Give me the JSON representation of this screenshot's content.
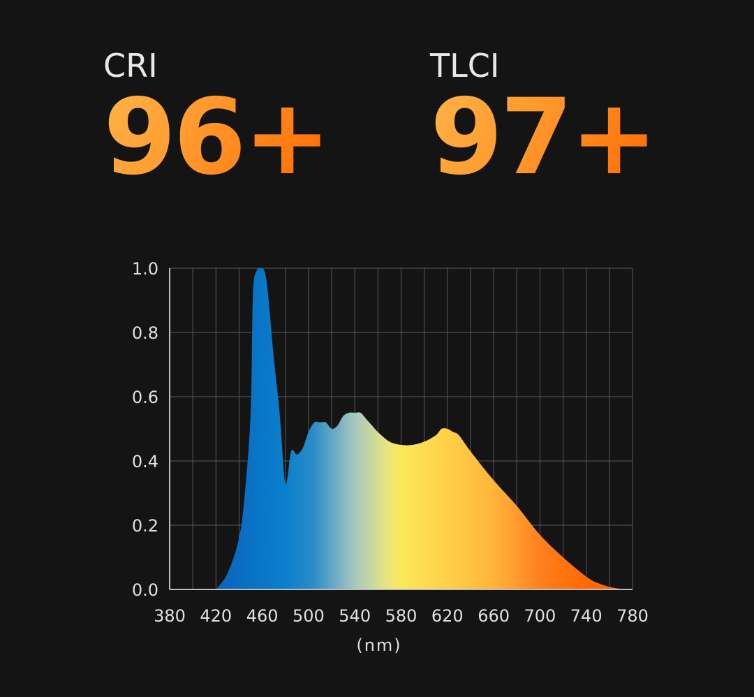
{
  "metrics": [
    {
      "label": "CRI",
      "value": "96+"
    },
    {
      "label": "TLCI",
      "value": "97+"
    }
  ],
  "colors": {
    "background": "#141414",
    "accent_light": "#ffb347",
    "accent_dark": "#ff6a00",
    "grid": "#5a5a5a",
    "axis": "#bdbdbd",
    "label": "#e0e0e0"
  },
  "chart_data": {
    "type": "area",
    "title": "",
    "xlabel": "(nm)",
    "ylabel": "",
    "xlim": [
      380,
      780
    ],
    "ylim": [
      0,
      1
    ],
    "x_ticks": [
      380,
      420,
      460,
      500,
      540,
      580,
      620,
      660,
      700,
      740,
      780
    ],
    "y_ticks": [
      0.0,
      0.2,
      0.4,
      0.6,
      0.8,
      1.0
    ],
    "y_tick_labels": [
      "0.0",
      "0.2",
      "0.4",
      "0.6",
      "0.8",
      "1.0"
    ],
    "grid": true,
    "fill": "visible-spectrum gradient",
    "series": [
      {
        "x": [
          420,
          430,
          440,
          445,
          450,
          452,
          455,
          458,
          462,
          465,
          470,
          475,
          480,
          485,
          490,
          495,
          500,
          505,
          510,
          515,
          520,
          525,
          530,
          535,
          540,
          545,
          550,
          555,
          560,
          570,
          580,
          590,
          600,
          610,
          615,
          620,
          625,
          630,
          640,
          660,
          680,
          700,
          720,
          740,
          750,
          760,
          770,
          780
        ],
        "y": [
          0.0,
          0.05,
          0.16,
          0.3,
          0.55,
          0.92,
          0.99,
          1.0,
          0.99,
          0.92,
          0.72,
          0.55,
          0.33,
          0.43,
          0.42,
          0.44,
          0.49,
          0.52,
          0.52,
          0.52,
          0.5,
          0.51,
          0.54,
          0.55,
          0.55,
          0.55,
          0.53,
          0.51,
          0.49,
          0.46,
          0.45,
          0.45,
          0.46,
          0.48,
          0.5,
          0.5,
          0.49,
          0.48,
          0.43,
          0.34,
          0.26,
          0.17,
          0.1,
          0.04,
          0.02,
          0.008,
          0.002,
          0.0
        ]
      }
    ]
  }
}
